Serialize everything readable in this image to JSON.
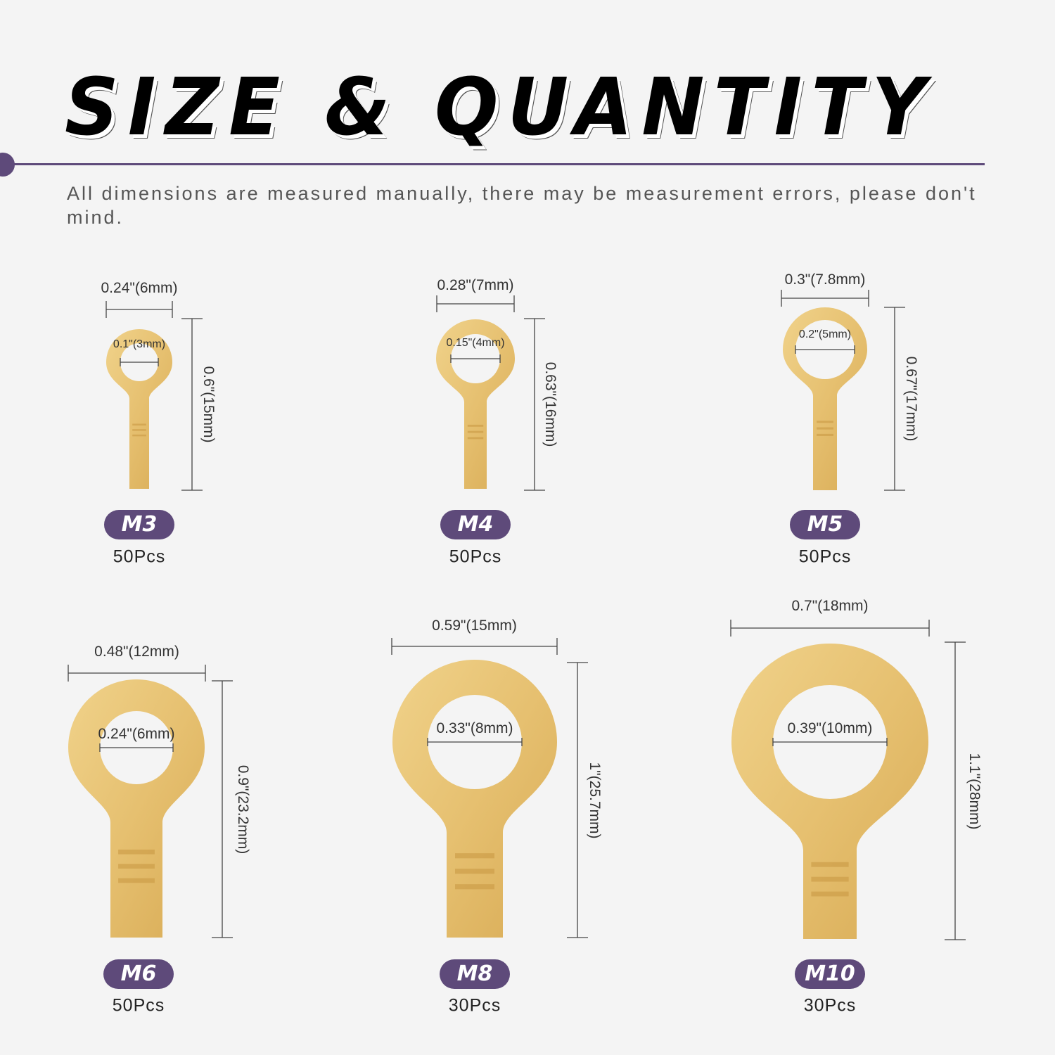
{
  "title": "SIZE & QUANTITY",
  "subtitle": "All dimensions are measured manually, there may be measurement errors, please don't mind.",
  "colors": {
    "accent": "#5e4a7a",
    "terminal": "#e8c474",
    "text": "#333333"
  },
  "items": [
    {
      "size": "M3",
      "qty": "50Pcs",
      "width": "0.24\"(6mm)",
      "hole": "0.1\"(3mm)",
      "length": "0.6\"(15mm)"
    },
    {
      "size": "M4",
      "qty": "50Pcs",
      "width": "0.28\"(7mm)",
      "hole": "0.15\"(4mm)",
      "length": "0.63\"(16mm)"
    },
    {
      "size": "M5",
      "qty": "50Pcs",
      "width": "0.3\"(7.8mm)",
      "hole": "0.2\"(5mm)",
      "length": "0.67\"(17mm)"
    },
    {
      "size": "M6",
      "qty": "50Pcs",
      "width": "0.48\"(12mm)",
      "hole": "0.24\"(6mm)",
      "length": "0.9\"(23.2mm)"
    },
    {
      "size": "M8",
      "qty": "30Pcs",
      "width": "0.59\"(15mm)",
      "hole": "0.33\"(8mm)",
      "length": "1\"(25.7mm)"
    },
    {
      "size": "M10",
      "qty": "30Pcs",
      "width": "0.7\"(18mm)",
      "hole": "0.39\"(10mm)",
      "length": "1.1\"(28mm)"
    }
  ]
}
